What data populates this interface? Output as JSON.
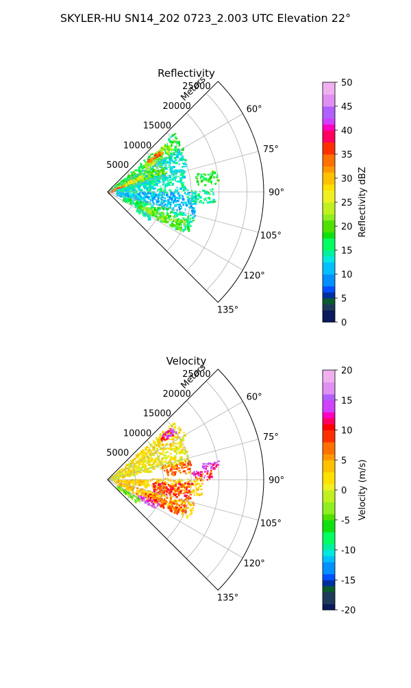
{
  "figure": {
    "title": "SKYLER-HU  SN14_202  0723_2.003 UTC Elevation 22°"
  },
  "chart_data": [
    {
      "type": "heatmap",
      "title": "Reflectivity",
      "range_label": "Meters",
      "range_ticks": [
        "5000",
        "10000",
        "15000",
        "20000",
        "25000"
      ],
      "range_values": [
        5000,
        10000,
        15000,
        20000,
        25000
      ],
      "range_max": 28000,
      "azimuth_ticks": [
        "60°",
        "75°",
        "90°",
        "105°",
        "120°",
        "135°"
      ],
      "azimuth_values": [
        60,
        75,
        90,
        105,
        120,
        135
      ],
      "azimuth_range": [
        45,
        135
      ],
      "grid": true,
      "colorbar": {
        "label": "Reflectivity dBZ",
        "range": [
          0,
          50
        ],
        "ticks": [
          "0",
          "5",
          "10",
          "15",
          "20",
          "25",
          "30",
          "35",
          "40",
          "45",
          "50"
        ],
        "tick_values": [
          0,
          5,
          10,
          15,
          20,
          25,
          30,
          35,
          40,
          45,
          50
        ]
      },
      "colormap": [
        [
          0,
          "#0a1a5a"
        ],
        [
          2,
          "#1e3a5a"
        ],
        [
          4,
          "#0a5a30"
        ],
        [
          5,
          "#0030a0"
        ],
        [
          6,
          "#0050ff"
        ],
        [
          8,
          "#0090ff"
        ],
        [
          10,
          "#00c0ff"
        ],
        [
          12,
          "#00e8e0"
        ],
        [
          14,
          "#00f0a0"
        ],
        [
          15,
          "#00ff60"
        ],
        [
          17,
          "#10e010"
        ],
        [
          19,
          "#50e000"
        ],
        [
          21,
          "#90ee20"
        ],
        [
          23,
          "#c0f020"
        ],
        [
          25,
          "#f0f020"
        ],
        [
          27,
          "#ffe000"
        ],
        [
          29,
          "#ffc000"
        ],
        [
          31,
          "#ff9800"
        ],
        [
          33,
          "#ff7000"
        ],
        [
          35,
          "#ff3000"
        ],
        [
          37,
          "#ff0000"
        ],
        [
          38,
          "#ff0060"
        ],
        [
          40,
          "#ff00c0"
        ],
        [
          41,
          "#d040ff"
        ],
        [
          43,
          "#b060ff"
        ],
        [
          45,
          "#e090f0"
        ],
        [
          47,
          "#f0b0f0"
        ],
        [
          50,
          "#ffe0ff"
        ]
      ],
      "echo_regions": [
        {
          "az": [
            48,
            60
          ],
          "r": [
            500,
            16000
          ],
          "value": 17
        },
        {
          "az": [
            50,
            58
          ],
          "r": [
            8000,
            14000
          ],
          "value": 23
        },
        {
          "az": [
            51,
            54
          ],
          "r": [
            9000,
            12000
          ],
          "value": 34
        },
        {
          "az": [
            58,
            75
          ],
          "r": [
            1000,
            15000
          ],
          "value": 13
        },
        {
          "az": [
            60,
            72
          ],
          "r": [
            2000,
            11000
          ],
          "value": 21
        },
        {
          "az": [
            62,
            68
          ],
          "r": [
            1000,
            7000
          ],
          "value": 27
        },
        {
          "az": [
            66,
            72
          ],
          "r": [
            0,
            3000
          ],
          "value": 35
        },
        {
          "az": [
            72,
            90
          ],
          "r": [
            1500,
            14000
          ],
          "value": 14
        },
        {
          "az": [
            78,
            86
          ],
          "r": [
            16000,
            20000
          ],
          "value": 18
        },
        {
          "az": [
            88,
            96
          ],
          "r": [
            14000,
            19000
          ],
          "value": 15
        },
        {
          "az": [
            90,
            105
          ],
          "r": [
            1500,
            16000
          ],
          "value": 11
        },
        {
          "az": [
            105,
            118
          ],
          "r": [
            3000,
            16000
          ],
          "value": 16
        },
        {
          "az": [
            110,
            118
          ],
          "r": [
            6000,
            15000
          ],
          "value": 22
        },
        {
          "az": [
            118,
            124
          ],
          "r": [
            6000,
            9000
          ],
          "value": 14
        }
      ]
    },
    {
      "type": "heatmap",
      "title": "Velocity",
      "range_label": "Meters",
      "range_ticks": [
        "5000",
        "10000",
        "15000",
        "20000",
        "25000"
      ],
      "range_values": [
        5000,
        10000,
        15000,
        20000,
        25000
      ],
      "range_max": 28000,
      "azimuth_ticks": [
        "60°",
        "75°",
        "90°",
        "105°",
        "120°",
        "135°"
      ],
      "azimuth_values": [
        60,
        75,
        90,
        105,
        120,
        135
      ],
      "azimuth_range": [
        45,
        135
      ],
      "grid": true,
      "colorbar": {
        "label": "Velocity (m/s)",
        "range": [
          -20,
          20
        ],
        "ticks": [
          "-20",
          "-15",
          "-10",
          "-5",
          "0",
          "5",
          "10",
          "15",
          "20"
        ],
        "tick_values": [
          -20,
          -15,
          -10,
          -5,
          0,
          5,
          10,
          15,
          20
        ]
      },
      "colormap": [
        [
          -20,
          "#0a1a5a"
        ],
        [
          -19,
          "#1e3a5a"
        ],
        [
          -17,
          "#0a5a30"
        ],
        [
          -16,
          "#0030a0"
        ],
        [
          -15,
          "#0050ff"
        ],
        [
          -14,
          "#0090ff"
        ],
        [
          -12,
          "#00c0ff"
        ],
        [
          -11,
          "#00e8e0"
        ],
        [
          -10,
          "#00f0a0"
        ],
        [
          -9,
          "#00ff60"
        ],
        [
          -7,
          "#10e010"
        ],
        [
          -5,
          "#50e000"
        ],
        [
          -4,
          "#90ee20"
        ],
        [
          -2,
          "#c0f020"
        ],
        [
          0,
          "#f0f020"
        ],
        [
          1,
          "#ffe000"
        ],
        [
          3,
          "#ffc000"
        ],
        [
          5,
          "#ff9800"
        ],
        [
          6,
          "#ff7000"
        ],
        [
          8,
          "#ff3000"
        ],
        [
          10,
          "#ff0000"
        ],
        [
          11,
          "#ff0060"
        ],
        [
          12,
          "#ff00c0"
        ],
        [
          13,
          "#d040ff"
        ],
        [
          15,
          "#b060ff"
        ],
        [
          16,
          "#e090f0"
        ],
        [
          18,
          "#f0b0f0"
        ],
        [
          20,
          "#ffe0ff"
        ]
      ],
      "echo_regions": [
        {
          "az": [
            48,
            62
          ],
          "r": [
            500,
            16000
          ],
          "value": 2
        },
        {
          "az": [
            50,
            55
          ],
          "r": [
            12000,
            15000
          ],
          "value": 13
        },
        {
          "az": [
            62,
            78
          ],
          "r": [
            500,
            15000
          ],
          "value": 1
        },
        {
          "az": [
            75,
            85
          ],
          "r": [
            10000,
            15000
          ],
          "value": 7
        },
        {
          "az": [
            80,
            84
          ],
          "r": [
            17000,
            20000
          ],
          "value": 14
        },
        {
          "az": [
            84,
            90
          ],
          "r": [
            15000,
            18500
          ],
          "value": 12
        },
        {
          "az": [
            88,
            100
          ],
          "r": [
            1000,
            17000
          ],
          "value": 3
        },
        {
          "az": [
            92,
            104
          ],
          "r": [
            8000,
            15000
          ],
          "value": 9
        },
        {
          "az": [
            104,
            116
          ],
          "r": [
            2000,
            16000
          ],
          "value": 4
        },
        {
          "az": [
            108,
            116
          ],
          "r": [
            7000,
            15000
          ],
          "value": 8
        },
        {
          "az": [
            114,
            121
          ],
          "r": [
            6000,
            10000
          ],
          "value": 14
        },
        {
          "az": [
            120,
            128
          ],
          "r": [
            2000,
            7000
          ],
          "value": -4
        }
      ]
    }
  ]
}
